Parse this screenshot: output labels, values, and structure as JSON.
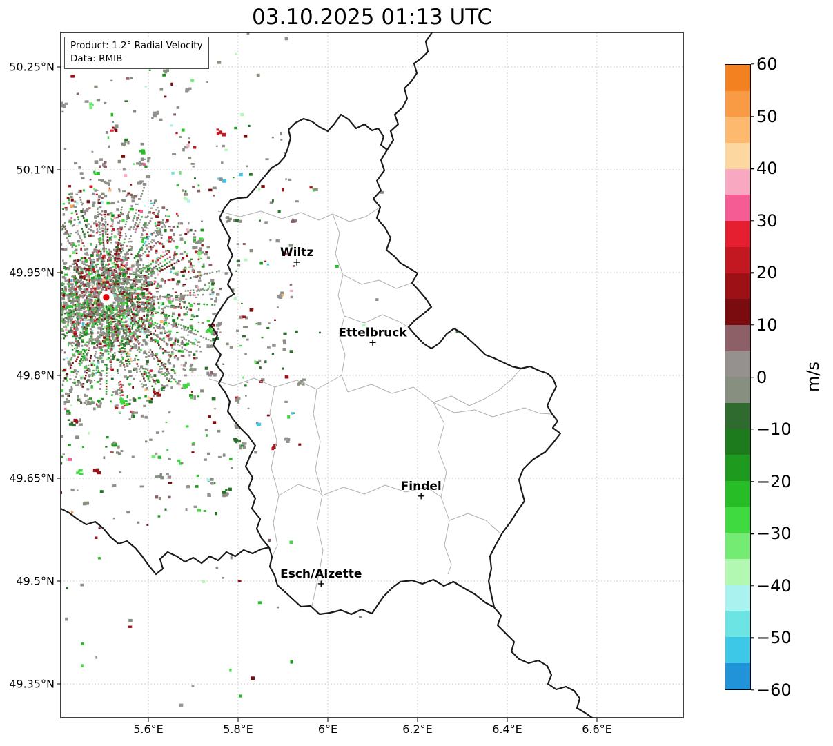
{
  "title": "03.10.2025 01:13 UTC",
  "info_box": {
    "line1": "Product: 1.2° Radial Velocity",
    "line2": "Data: RMIB"
  },
  "axes": {
    "lat_ticks": [
      {
        "value": 50.25,
        "label": "50.25°N"
      },
      {
        "value": 50.1,
        "label": "50.1°N"
      },
      {
        "value": 49.95,
        "label": "49.95°N"
      },
      {
        "value": 49.8,
        "label": "49.8°N"
      },
      {
        "value": 49.65,
        "label": "49.65°N"
      },
      {
        "value": 49.5,
        "label": "49.5°N"
      },
      {
        "value": 49.35,
        "label": "49.35°N"
      }
    ],
    "lon_ticks": [
      {
        "value": 5.6,
        "label": "5.6°E"
      },
      {
        "value": 5.8,
        "label": "5.8°E"
      },
      {
        "value": 6.0,
        "label": "6°E"
      },
      {
        "value": 6.2,
        "label": "6.2°E"
      },
      {
        "value": 6.4,
        "label": "6.4°E"
      },
      {
        "value": 6.6,
        "label": "6.6°E"
      }
    ]
  },
  "cities": [
    {
      "name": "Wiltz",
      "lon": 5.931,
      "lat": 49.965
    },
    {
      "name": "Ettelbruck",
      "lon": 6.1,
      "lat": 49.848
    },
    {
      "name": "Findel",
      "lon": 6.208,
      "lat": 49.624
    },
    {
      "name": "Esch/Alzette",
      "lon": 5.985,
      "lat": 49.496
    }
  ],
  "radar": {
    "lon": 5.506,
    "lat": 49.914,
    "marker_color": "#e50000"
  },
  "colorbar": {
    "unit": "m/s",
    "min": -60,
    "max": 60,
    "step": 5,
    "tick_values": [
      60,
      50,
      40,
      30,
      20,
      10,
      0,
      -10,
      -20,
      -30,
      -40,
      -50,
      -60
    ],
    "tick_labels": [
      "60",
      "50",
      "40",
      "30",
      "20",
      "10",
      "0",
      "−10",
      "−20",
      "−30",
      "−40",
      "−50",
      "−60"
    ],
    "colors_top_to_bottom": [
      "#f4811f",
      "#f99a45",
      "#fdb96e",
      "#fdd7a0",
      "#f9a8c2",
      "#f55c93",
      "#e51f30",
      "#c31722",
      "#9d1016",
      "#7a0c10",
      "#8d5f66",
      "#94918f",
      "#879080",
      "#2f6b2f",
      "#1d7a1d",
      "#1e9a1e",
      "#27bd27",
      "#3fda3f",
      "#74ec74",
      "#b2f7b2",
      "#a9f2ef",
      "#6ce4e4",
      "#3ec8e8",
      "#2193d8"
    ]
  },
  "chart_data": {
    "type": "map",
    "title": "03.10.2025 01:13 UTC",
    "product": "1.2° Radial Velocity",
    "source": "RMIB",
    "unit": "m/s",
    "value_range": [
      -60,
      60
    ],
    "lon_ticks_deg_e": [
      5.6,
      5.8,
      6.0,
      6.2,
      6.4,
      6.6
    ],
    "lat_ticks_deg_n": [
      50.25,
      50.1,
      49.95,
      49.8,
      49.65,
      49.5,
      49.35
    ],
    "radar_site": {
      "lon": 5.506,
      "lat": 49.914
    },
    "labeled_places": [
      {
        "name": "Wiltz",
        "lon": 5.931,
        "lat": 49.965
      },
      {
        "name": "Ettelbruck",
        "lon": 6.1,
        "lat": 49.848
      },
      {
        "name": "Findel",
        "lon": 6.208,
        "lat": 49.624
      },
      {
        "name": "Esch/Alzette",
        "lon": 5.985,
        "lat": 49.496
      }
    ],
    "legend_position": "right",
    "grid": "dotted"
  }
}
